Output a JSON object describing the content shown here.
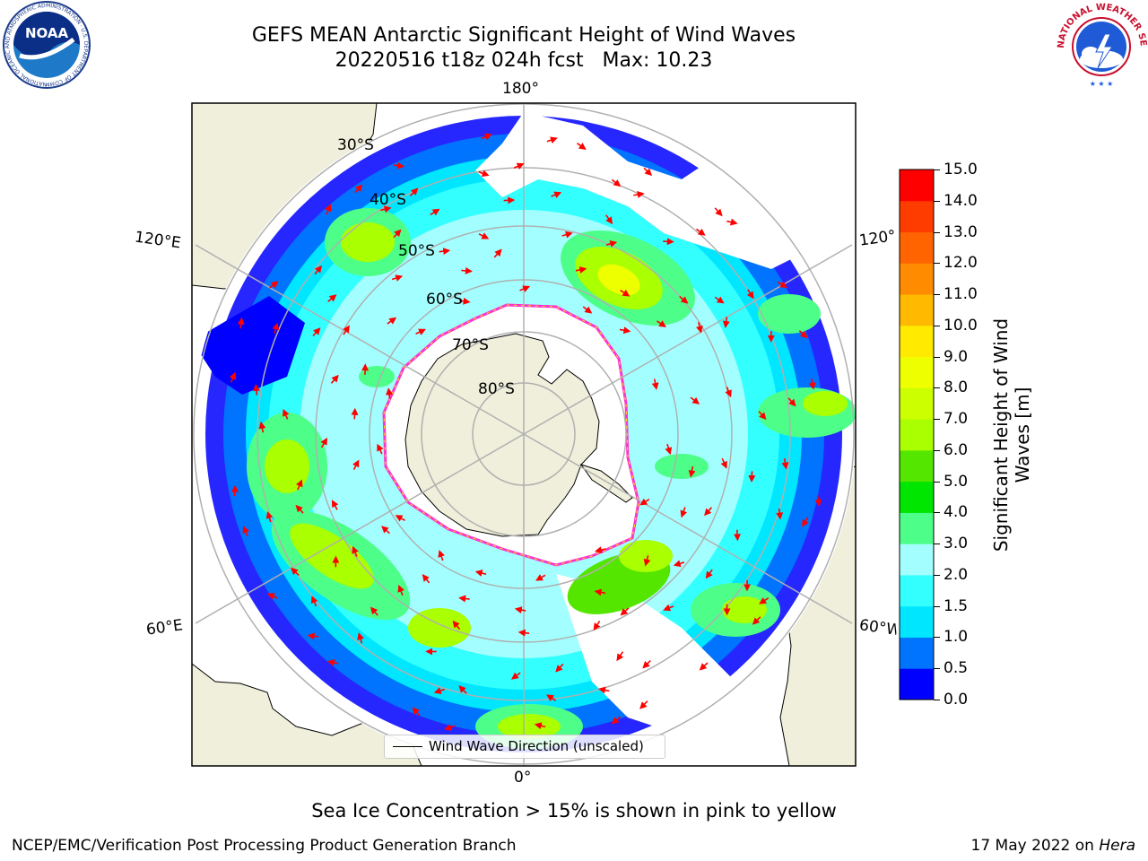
{
  "title": "GEFS MEAN Antarctic Significant Height of Wind Waves",
  "subtitle": "20220516 t18z 024h fcst   Max: 10.23",
  "logos": {
    "left": "noaa-logo",
    "right": "national-weather-service-logo",
    "left_text": "NATIONAL OCEANIC AND ATMOSPHERIC ADMINISTRATION · U.S. DEPARTMENT OF COMMERCE",
    "left_center": "NOAA",
    "right_text": "NATIONAL WEATHER SERVICE"
  },
  "longitude_labels": {
    "top": "180°",
    "bottom": "0°",
    "upper_left": "120°E",
    "upper_right": "120°W",
    "lower_left": "60°E",
    "lower_right": "60°W"
  },
  "latitude_labels": [
    "30°S",
    "40°S",
    "50°S",
    "60°S",
    "70°S",
    "80°S"
  ],
  "colorbar": {
    "label": "Significant Height of Wind Waves [m]",
    "ticks": [
      "15.0",
      "14.0",
      "13.0",
      "12.0",
      "11.0",
      "10.0",
      "9.0",
      "8.0",
      "7.0",
      "6.0",
      "5.0",
      "4.0",
      "3.0",
      "2.0",
      "1.5",
      "1.0",
      "0.5",
      "0.0"
    ],
    "colors": [
      "#0000ff",
      "#0074ff",
      "#00e6ff",
      "#33ffff",
      "#a3ffff",
      "#4dff88",
      "#00e600",
      "#55e600",
      "#aaff00",
      "#ccff00",
      "#eeff00",
      "#ffea00",
      "#ffba00",
      "#ff8c00",
      "#ff6400",
      "#ff3c00",
      "#ff0000"
    ]
  },
  "legend": {
    "label": "Wind Wave Direction (unscaled)"
  },
  "note": "Sea Ice Concentration > 15% is shown in pink to yellow",
  "footer": {
    "left": "NCEP/EMC/Verification Post Processing Product Generation Branch",
    "right_prefix": "17 May 2022 on ",
    "right_host": "Hera"
  },
  "colors": {
    "land": "#efefdb",
    "ice_edge": "#ff33cc",
    "arrow": "#ff0000",
    "grid": "#b0b0b0"
  }
}
